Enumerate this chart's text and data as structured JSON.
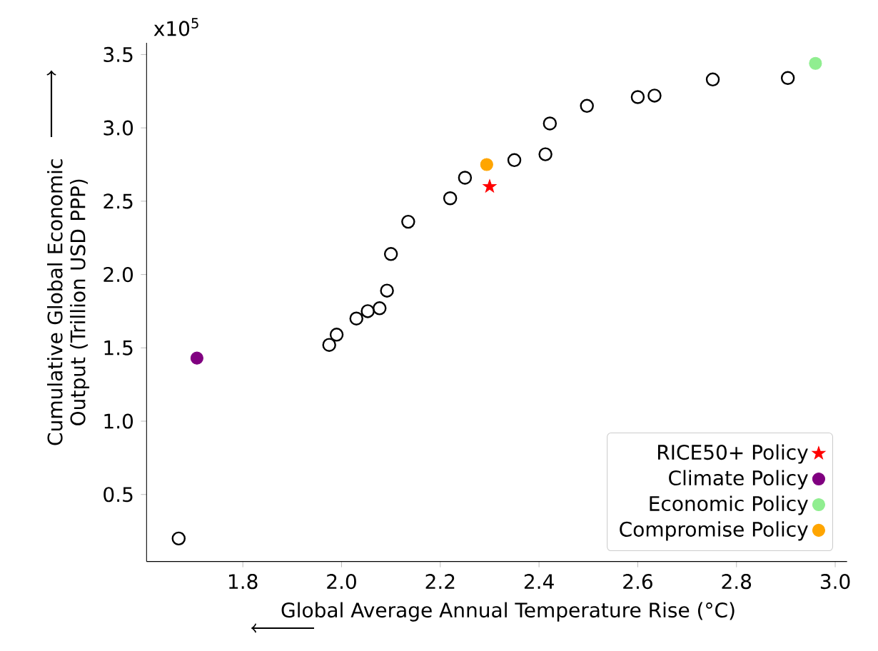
{
  "chart_data": {
    "type": "scatter",
    "xlabel": "Global Average Annual Temperature Rise (°C)",
    "ylabel": "Cumulative Global Economic Output (Trillion USD PPP)",
    "annotations": [
      "x10$^{5}$"
    ],
    "xlim": [
      1.605,
      3.024
    ],
    "xticks": [
      1.8,
      {
        "value": 2.0,
        "label": "2.0"
      },
      2.2,
      2.4,
      2.6,
      2.8,
      {
        "value": 3.0,
        "label": "3.0"
      }
    ],
    "ylim": [
      0.043,
      3.58
    ],
    "yticks": [
      0.5,
      {
        "value": 1.0,
        "label": "1.0"
      },
      1.5,
      {
        "value": 2.0,
        "label": "2.0"
      },
      2.5,
      {
        "value": 3.0,
        "label": "3.0"
      },
      3.5
    ],
    "legend": "bottom right",
    "series": [
      {
        "color": "#000000",
        "marker": "circle",
        "x": [
          1.67,
          1.975,
          1.99,
          2.03,
          2.053,
          2.077,
          2.092,
          2.1,
          2.135,
          2.22,
          2.25,
          2.35,
          2.413,
          2.422,
          2.497,
          2.6,
          2.634,
          2.752,
          2.904
        ],
        "values": [
          0.2,
          1.52,
          1.59,
          1.7,
          1.75,
          1.77,
          1.89,
          2.14,
          2.36,
          2.52,
          2.66,
          2.78,
          2.82,
          3.03,
          3.15,
          3.21,
          3.22,
          3.33,
          3.34
        ]
      },
      {
        "name": "RICE50+ Policy",
        "color": "#ff0000",
        "marker": "star",
        "x": [
          2.3
        ],
        "values": [
          2.6
        ]
      },
      {
        "name": "Climate Policy",
        "color": "#800080",
        "marker": "circle",
        "x": [
          1.707
        ],
        "values": [
          1.43
        ]
      },
      {
        "name": "Economic Policy",
        "color": "#90ee90",
        "marker": "circle",
        "x": [
          2.96
        ],
        "values": [
          3.44
        ]
      },
      {
        "name": "Compromise Policy",
        "color": "#ffa500",
        "marker": "circle",
        "x": [
          2.294
        ],
        "values": [
          2.75
        ]
      }
    ]
  }
}
